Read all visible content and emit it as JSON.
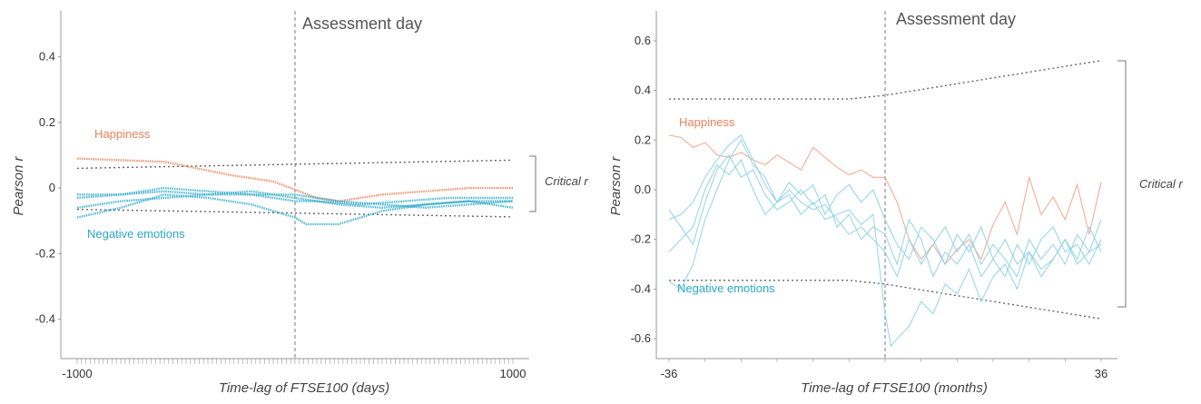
{
  "chart_data": [
    {
      "type": "line",
      "xlabel": "Time-lag of FTSE100 (days)",
      "ylabel": "Pearson r",
      "xlim": [
        -1000,
        1000
      ],
      "ylim": [
        -0.52,
        0.54
      ],
      "x_ticks": [
        -1000,
        1000
      ],
      "y_ticks": [
        0.4,
        0.2,
        0,
        -0.2,
        -0.4
      ],
      "y_tick_labels": [
        "0.4",
        "0.2",
        "0",
        "-0.2",
        "-0.4"
      ],
      "annotation": "Assessment day",
      "assessment_x": 0,
      "critical_label": "Critical r",
      "critical_upper": {
        "x": [
          -1000,
          1000
        ],
        "y": [
          0.06,
          0.085
        ]
      },
      "critical_lower": {
        "x": [
          -1000,
          1000
        ],
        "y": [
          -0.065,
          -0.088
        ]
      },
      "series_labels": {
        "happiness": "Happiness",
        "negative": "Negative emotions"
      },
      "colors": {
        "happiness": "#e8825a",
        "negative": "#2aa7c9",
        "critical": "#666666"
      },
      "series": [
        {
          "group": "happiness",
          "x": [
            -1000,
            -800,
            -600,
            -450,
            -300,
            -100,
            100,
            200,
            400,
            600,
            800,
            1000
          ],
          "y": [
            0.09,
            0.085,
            0.08,
            0.06,
            0.04,
            0.02,
            -0.03,
            -0.04,
            -0.02,
            -0.01,
            0.0,
            0.0
          ]
        },
        {
          "group": "negative",
          "x": [
            -1000,
            -800,
            -600,
            -400,
            -200,
            0,
            100,
            300,
            500,
            700,
            900,
            1000
          ],
          "y": [
            -0.03,
            -0.02,
            -0.01,
            -0.02,
            -0.02,
            -0.04,
            -0.04,
            -0.05,
            -0.04,
            -0.03,
            -0.03,
            -0.03
          ]
        },
        {
          "group": "negative",
          "x": [
            -1000,
            -800,
            -600,
            -400,
            -200,
            0,
            50,
            200,
            400,
            600,
            800,
            1000
          ],
          "y": [
            -0.09,
            -0.06,
            -0.02,
            -0.03,
            -0.05,
            -0.09,
            -0.11,
            -0.11,
            -0.07,
            -0.05,
            -0.04,
            -0.06
          ]
        },
        {
          "group": "negative",
          "x": [
            -1000,
            -800,
            -600,
            -400,
            -200,
            0,
            200,
            400,
            600,
            800,
            1000
          ],
          "y": [
            -0.06,
            -0.04,
            -0.03,
            -0.02,
            -0.01,
            -0.03,
            -0.05,
            -0.06,
            -0.05,
            -0.04,
            -0.04
          ]
        },
        {
          "group": "negative",
          "x": [
            -1000,
            -800,
            -600,
            -400,
            -200,
            0,
            200,
            400,
            600,
            800,
            1000
          ],
          "y": [
            -0.02,
            -0.02,
            0.0,
            -0.01,
            -0.02,
            -0.02,
            -0.04,
            -0.05,
            -0.06,
            -0.05,
            -0.04
          ]
        }
      ]
    },
    {
      "type": "line",
      "xlabel": "Time-lag of FTSE100 (months)",
      "ylabel": "Pearson r",
      "xlim": [
        -36,
        36
      ],
      "ylim": [
        -0.68,
        0.72
      ],
      "x_ticks": [
        -36,
        36
      ],
      "y_ticks": [
        0.6,
        0.4,
        0.2,
        0.0,
        -0.2,
        -0.4,
        -0.6
      ],
      "y_tick_labels": [
        "0.6",
        "0.4",
        "0.2",
        "0.0",
        "-0.2",
        "-0.4",
        "-0.6"
      ],
      "annotation": "Assessment day",
      "assessment_x": 0,
      "critical_label": "Critical r",
      "critical_upper": {
        "x": [
          -36,
          -6,
          0,
          36
        ],
        "y": [
          0.365,
          0.365,
          0.38,
          0.52
        ]
      },
      "critical_lower": {
        "x": [
          -36,
          -6,
          0,
          36
        ],
        "y": [
          -0.365,
          -0.365,
          -0.38,
          -0.52
        ]
      },
      "series_labels": {
        "happiness": "Happiness",
        "negative": "Negative emotions"
      },
      "colors": {
        "happiness": "#f2a58a",
        "negative": "#8fd3e6",
        "critical": "#666666"
      },
      "series": [
        {
          "group": "happiness",
          "x": [
            -36,
            -34,
            -32,
            -30,
            -28,
            -26,
            -24,
            -22,
            -20,
            -18,
            -16,
            -14,
            -12,
            -10,
            -8,
            -6,
            -4,
            -2,
            0,
            2,
            4,
            6,
            8,
            10,
            12,
            14,
            16,
            18,
            20,
            22,
            24,
            26,
            28,
            30,
            32,
            34,
            36
          ],
          "y": [
            0.22,
            0.21,
            0.17,
            0.19,
            0.14,
            0.13,
            0.15,
            0.12,
            0.1,
            0.14,
            0.11,
            0.08,
            0.17,
            0.13,
            0.09,
            0.06,
            0.08,
            0.05,
            0.05,
            -0.05,
            -0.2,
            -0.28,
            -0.22,
            -0.3,
            -0.24,
            -0.2,
            -0.28,
            -0.14,
            -0.05,
            -0.18,
            0.05,
            -0.1,
            -0.03,
            -0.12,
            0.02,
            -0.18,
            0.03
          ]
        },
        {
          "group": "negative",
          "x": [
            -36,
            -34,
            -32,
            -30,
            -28,
            -26,
            -24,
            -22,
            -20,
            -18,
            -16,
            -14,
            -12,
            -10,
            -8,
            -6,
            -4,
            -2,
            0,
            1,
            2,
            4,
            6,
            8,
            10,
            12,
            14,
            16,
            18,
            20,
            22,
            24,
            26,
            28,
            30,
            32,
            34,
            36
          ],
          "y": [
            -0.37,
            -0.4,
            -0.3,
            -0.12,
            0.0,
            0.12,
            0.2,
            0.1,
            0.05,
            -0.05,
            -0.02,
            -0.1,
            -0.05,
            -0.12,
            -0.1,
            -0.08,
            -0.14,
            -0.1,
            -0.5,
            -0.63,
            -0.6,
            -0.55,
            -0.45,
            -0.5,
            -0.38,
            -0.42,
            -0.32,
            -0.45,
            -0.35,
            -0.3,
            -0.4,
            -0.25,
            -0.35,
            -0.28,
            -0.2,
            -0.28,
            -0.15,
            -0.25
          ]
        },
        {
          "group": "negative",
          "x": [
            -36,
            -34,
            -32,
            -30,
            -28,
            -26,
            -24,
            -22,
            -20,
            -18,
            -16,
            -14,
            -12,
            -10,
            -8,
            -6,
            -4,
            -2,
            0,
            2,
            4,
            6,
            8,
            10,
            12,
            14,
            16,
            18,
            20,
            22,
            24,
            26,
            28,
            30,
            32,
            34,
            36
          ],
          "y": [
            -0.12,
            -0.1,
            -0.05,
            0.05,
            0.12,
            0.18,
            0.22,
            0.12,
            0.02,
            -0.05,
            0.0,
            -0.05,
            -0.08,
            -0.06,
            -0.12,
            -0.18,
            -0.15,
            -0.2,
            -0.25,
            -0.35,
            -0.2,
            -0.3,
            -0.22,
            -0.15,
            -0.25,
            -0.18,
            -0.3,
            -0.22,
            -0.28,
            -0.35,
            -0.2,
            -0.28,
            -0.22,
            -0.3,
            -0.18,
            -0.25,
            -0.12
          ]
        },
        {
          "group": "negative",
          "x": [
            -36,
            -34,
            -32,
            -30,
            -28,
            -26,
            -24,
            -22,
            -20,
            -18,
            -16,
            -14,
            -12,
            -10,
            -8,
            -6,
            -4,
            -2,
            0,
            2,
            4,
            6,
            8,
            10,
            12,
            14,
            16,
            18,
            20,
            22,
            24,
            26,
            28,
            30,
            32,
            34,
            36
          ],
          "y": [
            -0.25,
            -0.2,
            -0.15,
            0.0,
            0.1,
            0.06,
            0.12,
            0.0,
            -0.1,
            -0.05,
            0.03,
            -0.02,
            0.02,
            -0.1,
            -0.02,
            0.02,
            -0.05,
            0.0,
            -0.12,
            -0.22,
            -0.28,
            -0.15,
            -0.2,
            -0.3,
            -0.18,
            -0.25,
            -0.15,
            -0.28,
            -0.35,
            -0.22,
            -0.3,
            -0.2,
            -0.15,
            -0.25,
            -0.22,
            -0.3,
            -0.2
          ]
        },
        {
          "group": "negative",
          "x": [
            -36,
            -34,
            -32,
            -30,
            -28,
            -26,
            -24,
            -22,
            -20,
            -18,
            -16,
            -14,
            -12,
            -10,
            -8,
            -6,
            -4,
            -2,
            0,
            2,
            4,
            6,
            8,
            10,
            12,
            14,
            16,
            18,
            20,
            22,
            24,
            26,
            28,
            30,
            32,
            34,
            36
          ],
          "y": [
            -0.08,
            -0.15,
            -0.22,
            -0.05,
            0.08,
            0.14,
            0.05,
            0.08,
            -0.02,
            -0.08,
            -0.05,
            0.0,
            -0.06,
            -0.02,
            -0.15,
            -0.1,
            -0.2,
            -0.15,
            -0.18,
            -0.3,
            -0.12,
            -0.2,
            -0.35,
            -0.25,
            -0.3,
            -0.22,
            -0.35,
            -0.28,
            -0.2,
            -0.3,
            -0.25,
            -0.32,
            -0.28,
            -0.2,
            -0.3,
            -0.25,
            -0.22
          ]
        }
      ]
    }
  ]
}
